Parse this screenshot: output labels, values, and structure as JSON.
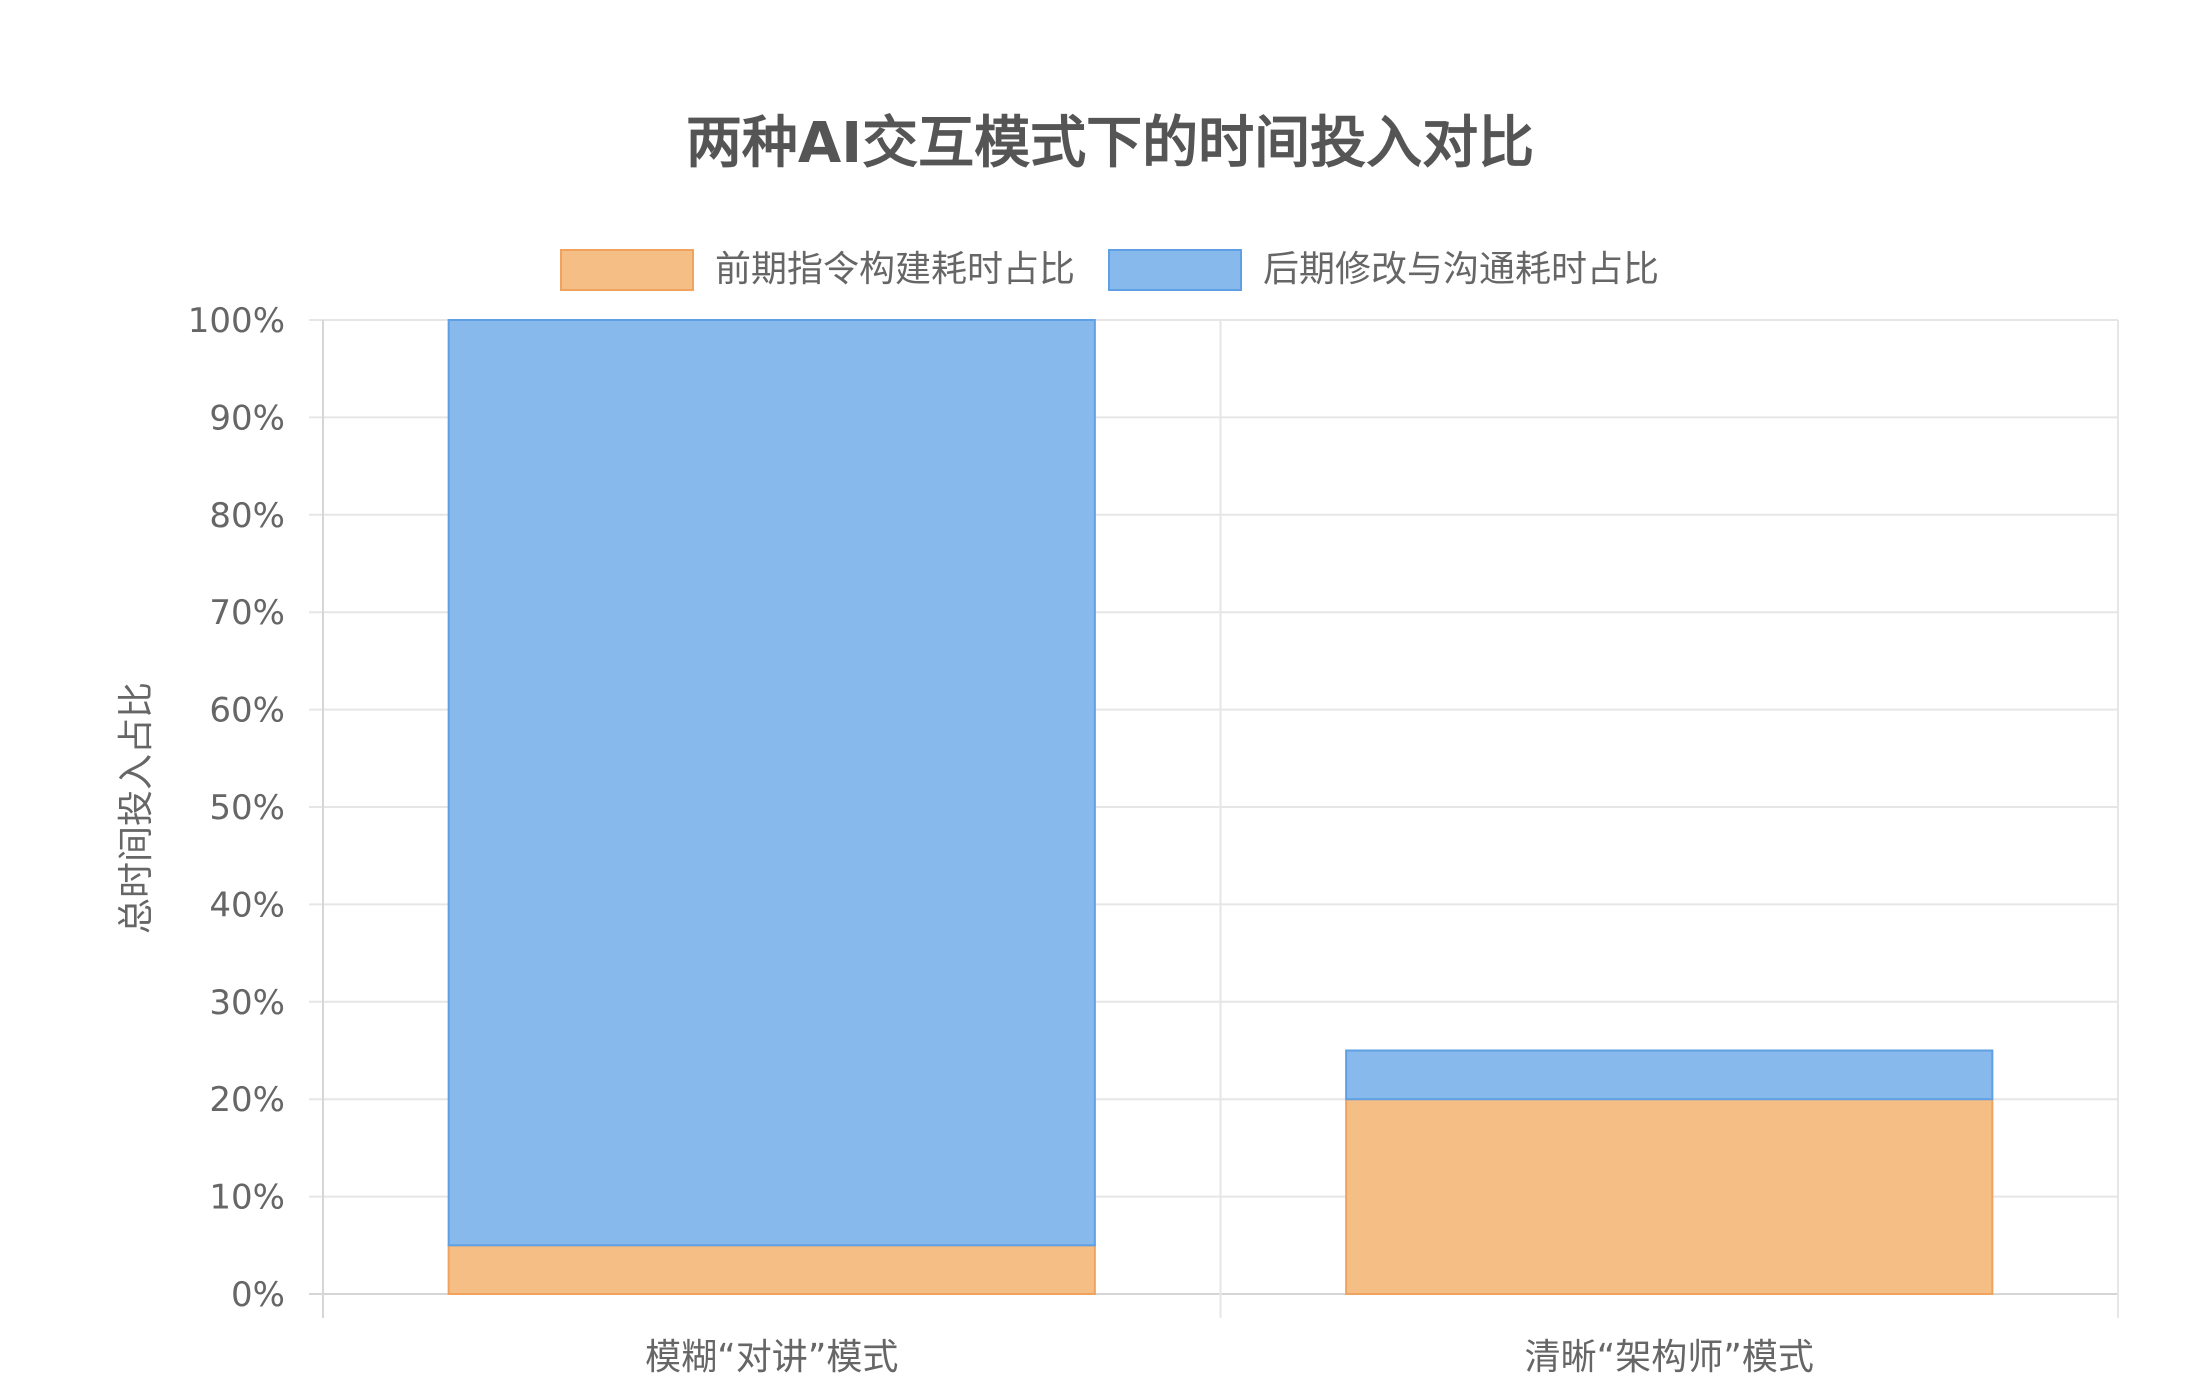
{
  "chart_data": {
    "type": "bar",
    "stacked": true,
    "title": "两种AI交互模式下的时间投入对比",
    "ylabel": "总时间投入占比",
    "xlabel": "",
    "categories": [
      "模糊“对讲”模式",
      "清晰“架构师”模式"
    ],
    "series": [
      {
        "name": "前期指令构建耗时占比",
        "values": [
          5,
          20
        ],
        "color": "#f5be85",
        "border": "#efa35e"
      },
      {
        "name": "后期修改与沟通耗时占比",
        "values": [
          95,
          5
        ],
        "color": "#88b9ec",
        "border": "#5f9fe3"
      }
    ],
    "ylim": [
      0,
      100
    ],
    "ytick_step": 10,
    "ytick_suffix": "%",
    "grid": true,
    "legend_position": "top"
  }
}
